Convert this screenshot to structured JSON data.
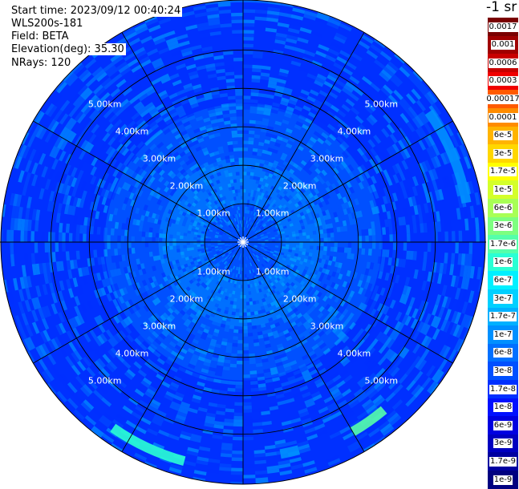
{
  "header": {
    "start_time": "Start time: 2023/09/12 00:40:24",
    "instrument": "WLS200s-181",
    "field": "Field: BETA",
    "elevation": "Elevation(deg): 35.30",
    "nrays": "NRays: 120"
  },
  "colorbar": {
    "unit": "-1 sr",
    "labels": [
      "0.0017",
      "0.001",
      "0.0006",
      "0.0003",
      "0.00017",
      "0.0001",
      "6e-5",
      "3e-5",
      "1.7e-5",
      "1e-5",
      "6e-6",
      "3e-6",
      "1.7e-6",
      "1e-6",
      "6e-7",
      "3e-7",
      "1.7e-7",
      "1e-7",
      "6e-8",
      "3e-8",
      "1.7e-8",
      "1e-8",
      "6e-9",
      "3e-9",
      "1.7e-9",
      "1e-9"
    ],
    "colors": [
      "#7a0000",
      "#a00000",
      "#c80000",
      "#f00000",
      "#ff5a00",
      "#ff8c00",
      "#ffb400",
      "#ffd700",
      "#ffff00",
      "#d4ff2a",
      "#a8ff55",
      "#7dff80",
      "#55ffaa",
      "#2affd4",
      "#00f0ff",
      "#00d0ff",
      "#00b0ff",
      "#0090ff",
      "#0070ff",
      "#0050ff",
      "#0030ff",
      "#0010ff",
      "#0000e0",
      "#0000c0",
      "#0000a0",
      "#000080"
    ]
  },
  "chart_data": {
    "type": "ppi",
    "field": "BETA",
    "elevation_deg": 35.3,
    "n_rays": 120,
    "range_rings_km": [
      1,
      2,
      3,
      4,
      5
    ],
    "range_labels": [
      "1.00km",
      "2.00km",
      "3.00km",
      "4.00km",
      "5.00km"
    ],
    "max_range_km": 6.3,
    "spokes_deg": [
      0,
      30,
      60,
      90,
      120,
      150,
      180,
      210,
      240,
      270,
      300,
      330
    ],
    "radial_profile": [
      {
        "from_km": 0.0,
        "to_km": 1.0,
        "value": "3e-8"
      },
      {
        "from_km": 1.0,
        "to_km": 2.2,
        "value": "6e-8"
      },
      {
        "from_km": 2.2,
        "to_km": 3.6,
        "value": "3e-8"
      },
      {
        "from_km": 3.6,
        "to_km": 6.3,
        "value": "1.7e-8"
      }
    ],
    "features": [
      {
        "azimuth_from_deg": 195,
        "azimuth_to_deg": 215,
        "range_km": 5.9,
        "value": "1e-6"
      },
      {
        "azimuth_from_deg": 140,
        "azimuth_to_deg": 150,
        "range_km": 5.7,
        "value": "1.7e-6"
      },
      {
        "azimuth_from_deg": 165,
        "azimuth_to_deg": 170,
        "range_km": 5.6,
        "value": "1e-7"
      },
      {
        "azimuth_from_deg": 55,
        "azimuth_to_deg": 80,
        "range_km": 5.9,
        "value": "1e-7"
      }
    ]
  }
}
